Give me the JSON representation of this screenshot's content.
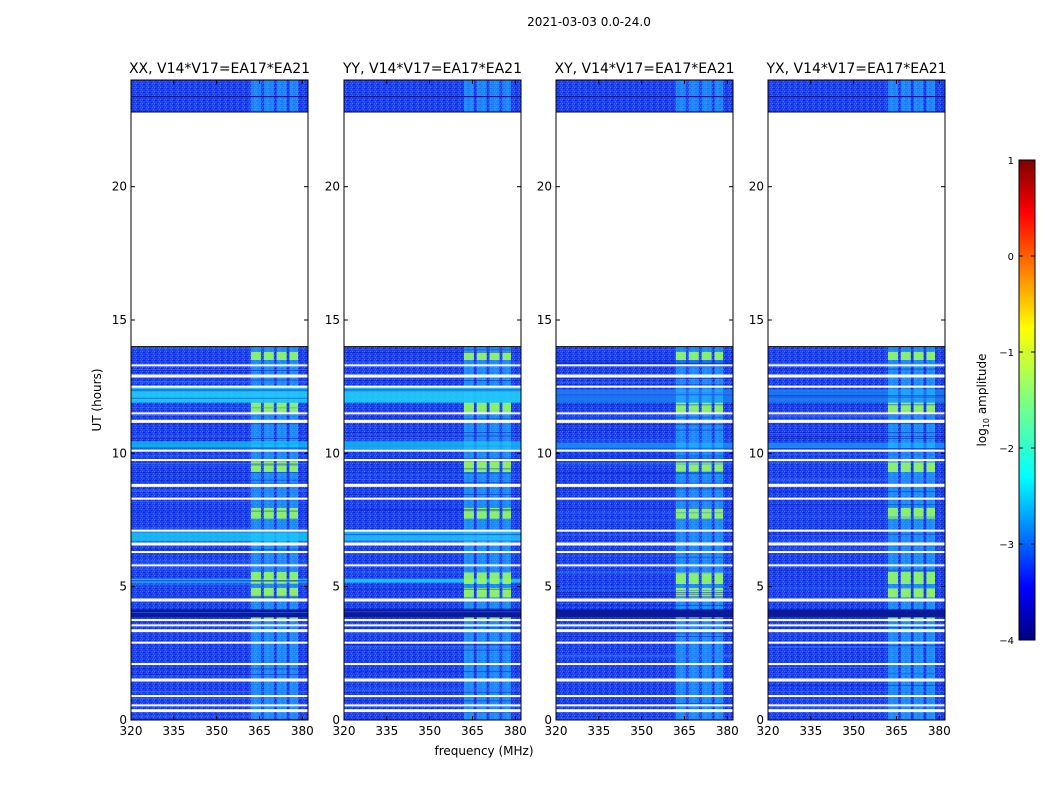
{
  "chart_data": {
    "type": "heatmap",
    "suptitle": "2021-03-03 0.0-24.0",
    "xlabel": "frequency (MHz)",
    "ylabel": "UT (hours)",
    "xlim": [
      320,
      382
    ],
    "ylim": [
      0,
      24
    ],
    "xticks": [
      "320",
      "335",
      "350",
      "365",
      "380"
    ],
    "xtick_values": [
      320,
      335,
      350,
      365,
      380
    ],
    "yticks": [
      "0",
      "5",
      "10",
      "15",
      "20"
    ],
    "ytick_values": [
      0,
      5,
      10,
      15,
      20
    ],
    "colorbar": {
      "label": "log10 amplitude",
      "label_main": "log",
      "label_sub": "10",
      "label_rest": " amplitude",
      "range": [
        -4,
        1
      ],
      "ticks": [
        "1",
        "0",
        "−1",
        "−2",
        "−3",
        "−4"
      ],
      "tick_values": [
        1,
        0,
        -1,
        -2,
        -3,
        -4
      ]
    },
    "panels": [
      {
        "title": "XX, V14*V17=EA17*EA21",
        "polarization": "XX"
      },
      {
        "title": "YY, V14*V17=EA17*EA21",
        "polarization": "YY"
      },
      {
        "title": "XY, V14*V17=EA17*EA21",
        "polarization": "XY"
      },
      {
        "title": "YX, V14*V17=EA17*EA21",
        "polarization": "YX"
      }
    ],
    "no_data_hours": [
      [
        14.0,
        22.8
      ]
    ],
    "flagged_gap_hours": [
      0.35,
      0.55,
      0.9,
      1.5,
      2.1,
      2.9,
      3.35,
      3.55,
      3.75,
      4.5,
      5.8,
      6.3,
      6.6,
      7.1,
      8.3,
      8.8,
      9.75,
      10.1,
      11.2,
      11.5,
      12.5,
      12.9,
      13.3
    ],
    "rfi_band_mhz": [
      [
        362,
        365.5
      ],
      [
        366.5,
        370
      ],
      [
        371,
        374.5
      ],
      [
        375.5,
        378.5
      ]
    ],
    "strong_rfi_hours": [
      [
        3.7,
        3.85
      ],
      [
        4.6,
        4.95
      ],
      [
        5.1,
        5.55
      ],
      [
        7.55,
        7.95
      ],
      [
        9.3,
        9.7
      ],
      [
        11.5,
        11.9
      ],
      [
        13.5,
        13.8
      ]
    ]
  }
}
